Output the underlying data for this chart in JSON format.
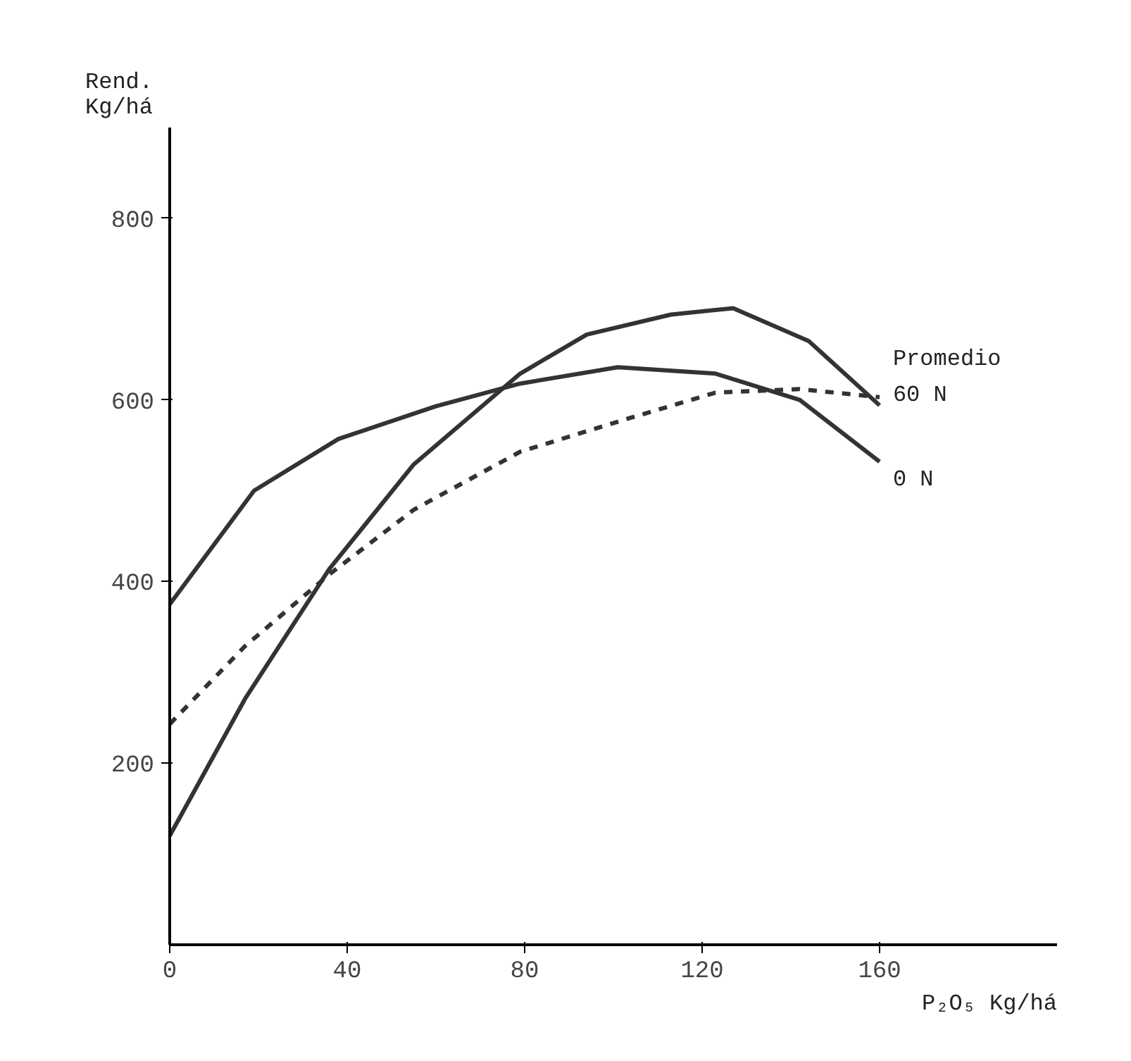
{
  "chart_data": {
    "type": "line",
    "xlabel": "P₂O₅ Kg/há",
    "ylabel": "Rend.\nKg/há",
    "xlim": [
      0,
      200
    ],
    "ylim": [
      0,
      900
    ],
    "xticks": [
      0,
      40,
      80,
      120,
      160
    ],
    "yticks": [
      200,
      400,
      600,
      800
    ],
    "grid": false,
    "series": [
      {
        "name": "Promedio",
        "color": "#333333",
        "line_style": "dashed",
        "x": [
          0,
          17,
          36,
          55,
          79,
          103,
          123,
          142,
          160
        ],
        "values": [
          243,
          329,
          408,
          479,
          543,
          579,
          608,
          612,
          603
        ]
      },
      {
        "name": "60 N",
        "color": "#333333",
        "line_style": "solid",
        "x": [
          0,
          17,
          36,
          55,
          79,
          94,
          113,
          127,
          144,
          160
        ],
        "values": [
          120,
          271,
          414,
          529,
          629,
          672,
          694,
          701,
          665,
          594
        ]
      },
      {
        "name": "0 N",
        "color": "#333333",
        "line_style": "solid",
        "x": [
          0,
          19,
          38,
          60,
          79,
          101,
          123,
          142,
          160
        ],
        "values": [
          375,
          500,
          557,
          593,
          618,
          636,
          629,
          600,
          532
        ]
      }
    ]
  }
}
